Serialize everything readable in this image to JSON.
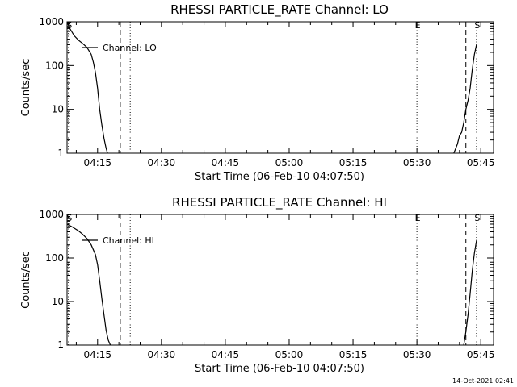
{
  "footer": {
    "timestamp": "14-Oct-2021 02:41"
  },
  "chart_data": [
    {
      "type": "line",
      "title": "RHESSI PARTICLE_RATE Channel: LO",
      "xlabel": "Start Time (06-Feb-10 04:07:50)",
      "ylabel": "Counts/sec",
      "y_scale": "log",
      "xlim": [
        "04:07:50",
        "05:48:00"
      ],
      "ylim": [
        1,
        1000
      ],
      "x_ticks": [
        "04:15",
        "04:30",
        "04:45",
        "05:00",
        "05:15",
        "05:30",
        "05:45"
      ],
      "y_ticks": [
        "1",
        "10",
        "100",
        "1000"
      ],
      "legend": {
        "position": "top-left",
        "entries": [
          "Channel: LO"
        ]
      },
      "markers": [
        {
          "label": "S",
          "time": "04:08:10",
          "style": "dotted"
        },
        {
          "label": "",
          "time": "04:20:20",
          "style": "dashed"
        },
        {
          "label": "",
          "time": "04:22:40",
          "style": "dotted"
        },
        {
          "label": "E",
          "time": "05:30:00",
          "style": "dotted"
        },
        {
          "label": "",
          "time": "05:41:30",
          "style": "dashed"
        },
        {
          "label": "S",
          "time": "05:44:00",
          "style": "dotted"
        }
      ],
      "series": [
        {
          "name": "Channel: LO",
          "segments": [
            {
              "x": [
                "04:07:50",
                "04:08:30",
                "04:09:30",
                "04:10:30",
                "04:11:30",
                "04:12:30",
                "04:13:30",
                "04:14:00",
                "04:14:30",
                "04:15:00",
                "04:15:30",
                "04:16:00",
                "04:16:30",
                "04:17:00",
                "04:17:20"
              ],
              "y": [
                1000,
                700,
                480,
                380,
                320,
                260,
                180,
                120,
                70,
                30,
                10,
                4.5,
                2.2,
                1.3,
                1.0
              ]
            },
            {
              "x": [
                "05:38:40",
                "05:39:30",
                "05:40:00",
                "05:40:30",
                "05:41:00",
                "05:41:30",
                "05:42:00",
                "05:42:30",
                "05:43:00",
                "05:43:30",
                "05:44:00"
              ],
              "y": [
                1.0,
                1.6,
                2.5,
                3.0,
                5.0,
                10,
                16,
                30,
                80,
                180,
                300
              ]
            }
          ]
        }
      ]
    },
    {
      "type": "line",
      "title": "RHESSI PARTICLE_RATE Channel: HI",
      "xlabel": "Start Time (06-Feb-10 04:07:50)",
      "ylabel": "Counts/sec",
      "y_scale": "log",
      "xlim": [
        "04:07:50",
        "05:48:00"
      ],
      "ylim": [
        1,
        1000
      ],
      "x_ticks": [
        "04:15",
        "04:30",
        "04:45",
        "05:00",
        "05:15",
        "05:30",
        "05:45"
      ],
      "y_ticks": [
        "1",
        "10",
        "100",
        "1000"
      ],
      "legend": {
        "position": "top-left",
        "entries": [
          "Channel: HI"
        ]
      },
      "markers": [
        {
          "label": "S",
          "time": "04:08:10",
          "style": "dotted"
        },
        {
          "label": "",
          "time": "04:20:20",
          "style": "dashed"
        },
        {
          "label": "",
          "time": "04:22:40",
          "style": "dotted"
        },
        {
          "label": "E",
          "time": "05:30:00",
          "style": "dotted"
        },
        {
          "label": "",
          "time": "05:41:30",
          "style": "dashed"
        },
        {
          "label": "S",
          "time": "05:44:00",
          "style": "dotted"
        }
      ],
      "series": [
        {
          "name": "Channel: HI",
          "segments": [
            {
              "x": [
                "04:07:50",
                "04:09:00",
                "04:10:30",
                "04:11:30",
                "04:12:30",
                "04:13:30",
                "04:14:30",
                "04:15:00",
                "04:15:30",
                "04:16:00",
                "04:16:30",
                "04:17:00",
                "04:17:30",
                "04:18:00"
              ],
              "y": [
                600,
                520,
                420,
                350,
                280,
                200,
                120,
                70,
                30,
                12,
                5,
                2.2,
                1.3,
                1.0
              ]
            },
            {
              "x": [
                "05:41:00",
                "05:41:30",
                "05:42:00",
                "05:42:30",
                "05:43:00",
                "05:43:30",
                "05:44:00"
              ],
              "y": [
                1.0,
                2.0,
                5.0,
                15,
                50,
                130,
                250
              ]
            }
          ]
        }
      ]
    }
  ]
}
